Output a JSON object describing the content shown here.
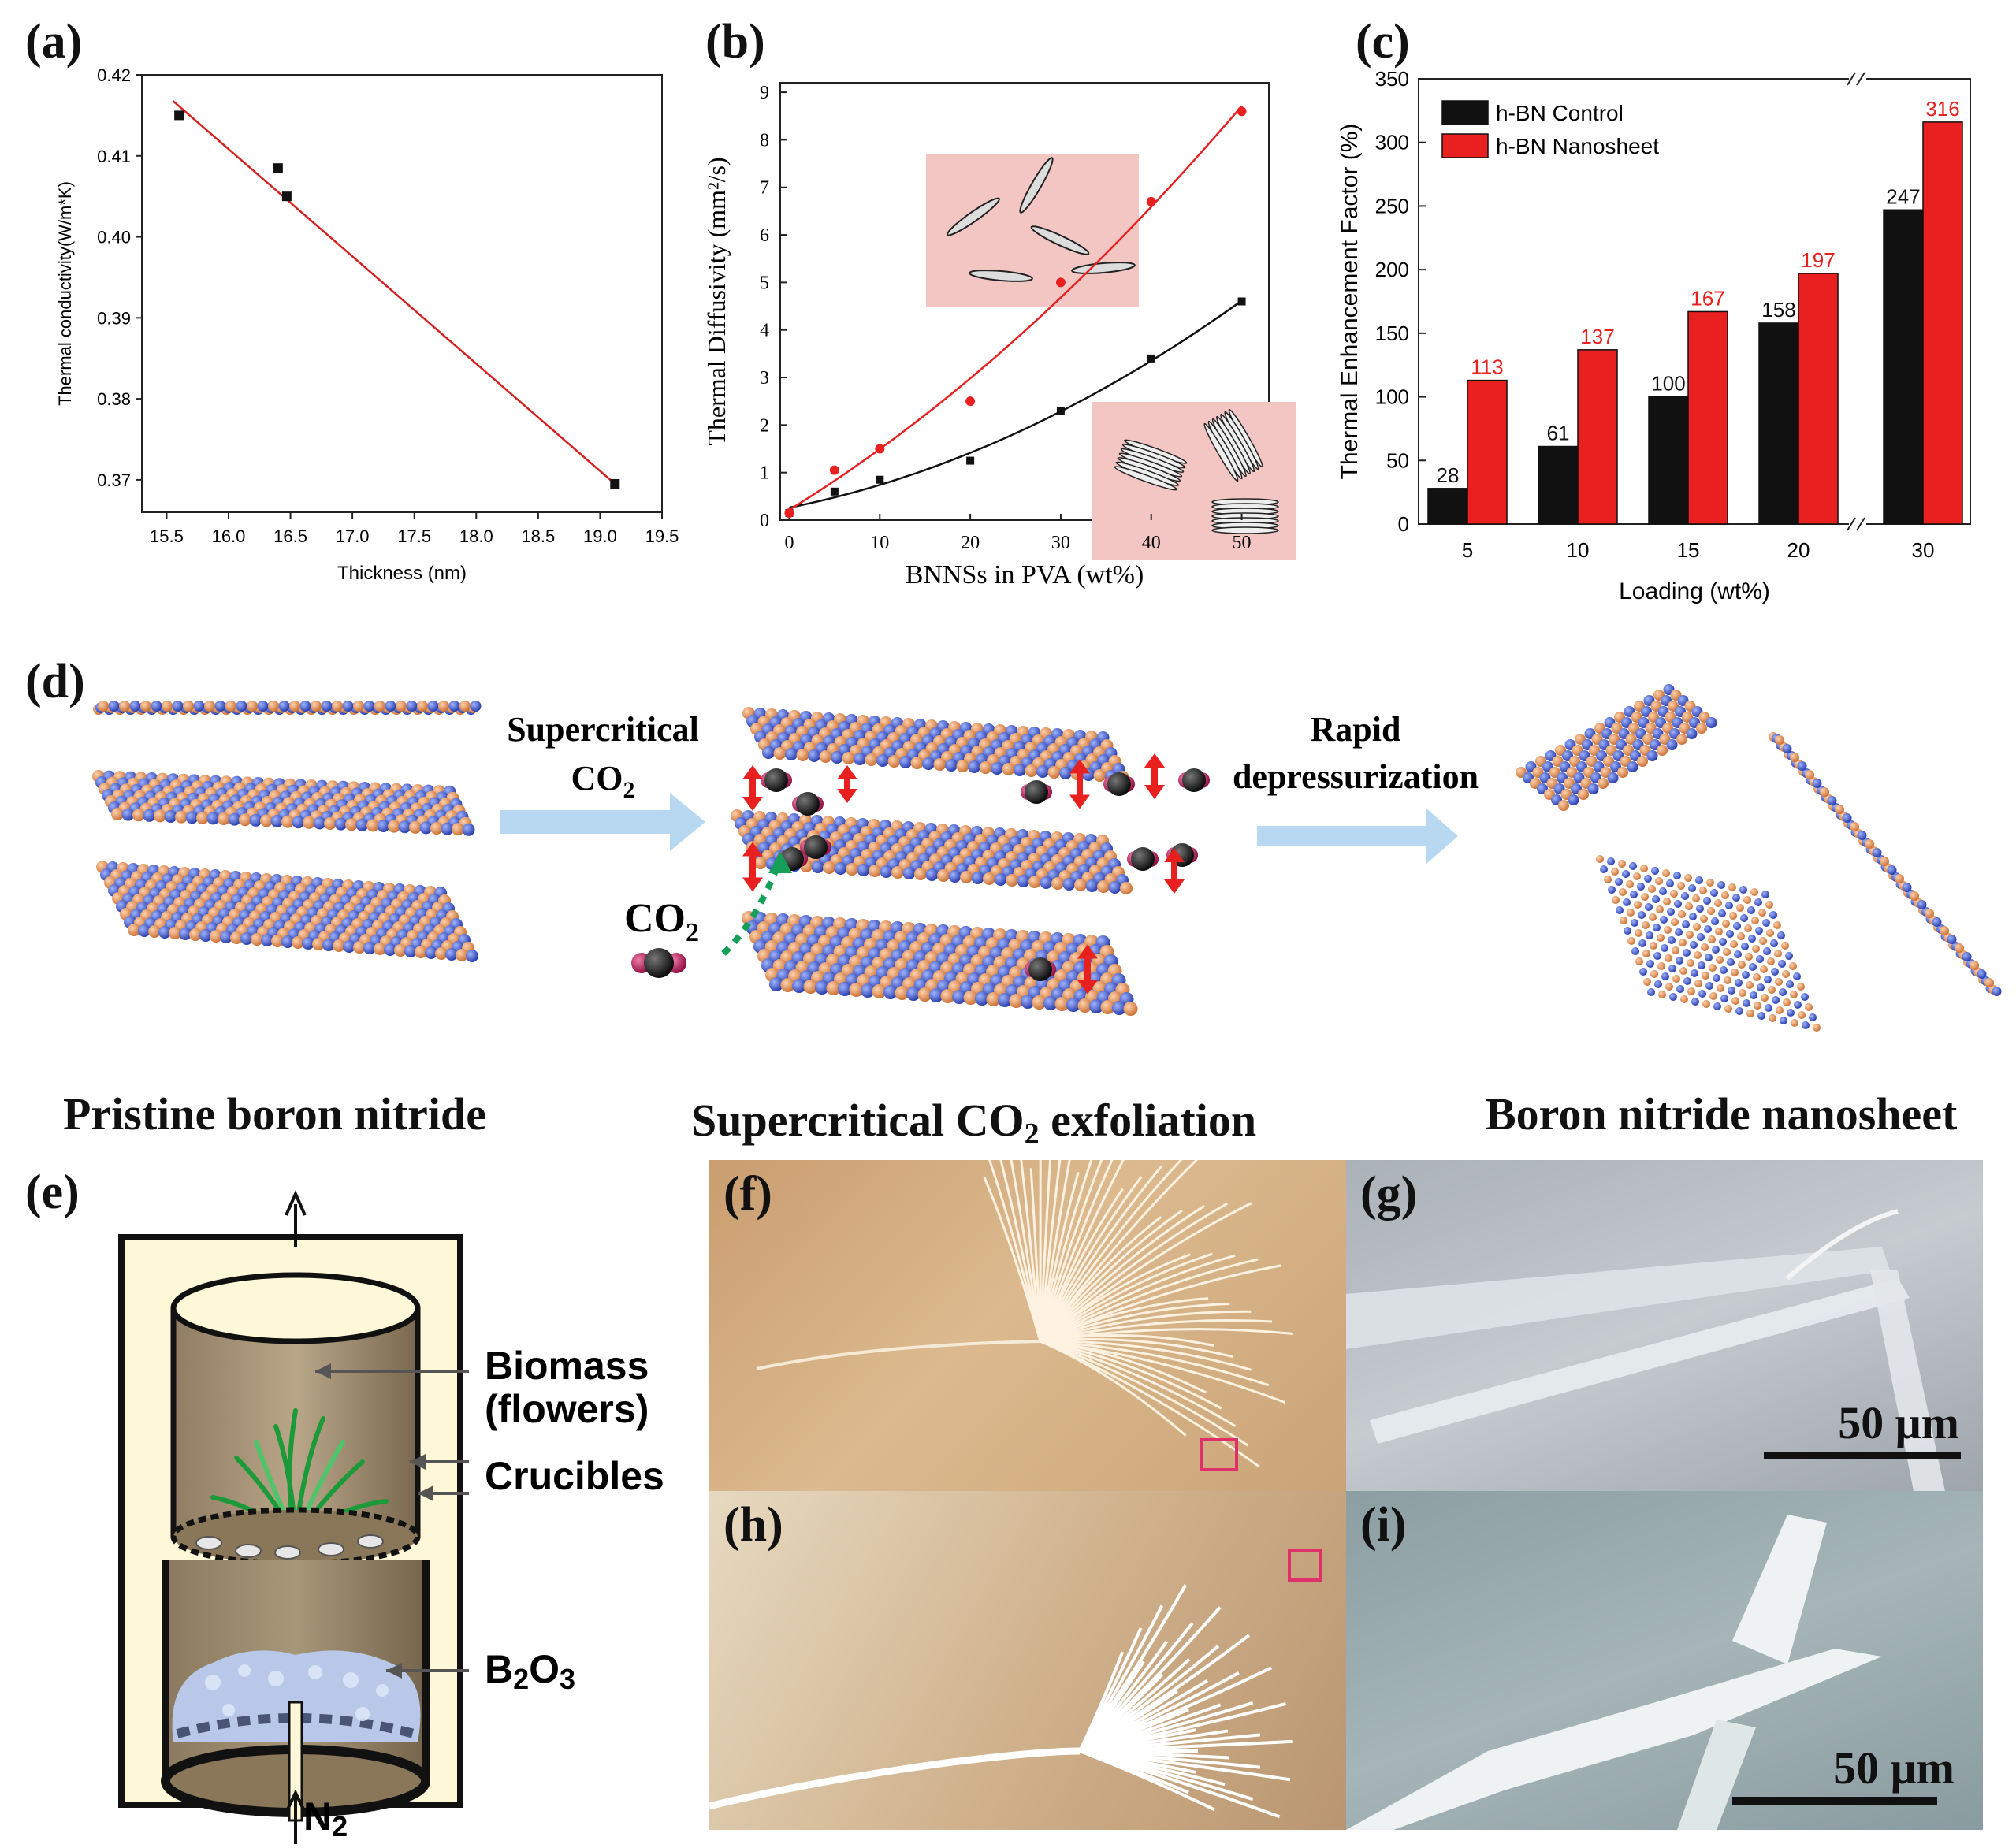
{
  "panels": {
    "a": {
      "label": "(a)"
    },
    "b": {
      "label": "(b)"
    },
    "c": {
      "label": "(c)"
    },
    "d": {
      "label": "(d)"
    },
    "e": {
      "label": "(e)"
    },
    "f": {
      "label": "(f)"
    },
    "g": {
      "label": "(g)"
    },
    "h": {
      "label": "(h)"
    },
    "i": {
      "label": "(i)"
    }
  },
  "chart_data": [
    {
      "id": "a",
      "type": "scatter",
      "xlabel": "Thickness (nm)",
      "ylabel": "Thermal conductivity(W/m*K)",
      "xlim": [
        15.3,
        19.5
      ],
      "ylim": [
        0.366,
        0.42
      ],
      "xticks": [
        "15.5",
        "16.0",
        "16.5",
        "17.0",
        "17.5",
        "18.0",
        "18.5",
        "19.0",
        "19.5"
      ],
      "yticks": [
        "0.37",
        "0.38",
        "0.39",
        "0.40",
        "0.41",
        "0.42"
      ],
      "points": [
        [
          15.6,
          0.415
        ],
        [
          16.4,
          0.4085
        ],
        [
          16.47,
          0.405
        ],
        [
          19.12,
          0.3695
        ]
      ],
      "fit_line": [
        [
          15.55,
          0.4168
        ],
        [
          19.12,
          0.3695
        ]
      ],
      "colors": {
        "points": "#111111",
        "fit": "#d62020"
      }
    },
    {
      "id": "b",
      "type": "scatter",
      "xlabel": "BNNSs in PVA (wt%)",
      "ylabel": "Thermal Diffusivity (mm²/s)",
      "xlim": [
        -1,
        53
      ],
      "ylim": [
        0,
        9.2
      ],
      "xticks": [
        "0",
        "10",
        "20",
        "30",
        "40",
        "50"
      ],
      "yticks": [
        "0",
        "1",
        "2",
        "3",
        "4",
        "5",
        "6",
        "7",
        "8",
        "9"
      ],
      "series": [
        {
          "name": "black",
          "color": "#111111",
          "x": [
            0,
            5,
            10,
            20,
            30,
            40,
            50
          ],
          "values": [
            0.15,
            0.6,
            0.85,
            1.25,
            2.3,
            3.4,
            4.6
          ]
        },
        {
          "name": "red",
          "color": "#e8201f",
          "x": [
            0,
            5,
            10,
            20,
            30,
            40,
            50
          ],
          "values": [
            0.15,
            1.05,
            1.5,
            2.5,
            5.0,
            6.7,
            8.6
          ]
        }
      ]
    },
    {
      "id": "c",
      "type": "bar",
      "xlabel": "Loading (wt%)",
      "ylabel": "Thermal Enhancement Factor (%)",
      "ylim": [
        0,
        350
      ],
      "yticks": [
        "0",
        "50",
        "100",
        "150",
        "200",
        "250",
        "300",
        "350"
      ],
      "categories": [
        "5",
        "10",
        "15",
        "20",
        "30"
      ],
      "series": [
        {
          "name": "h-BN Control",
          "color": "#111111",
          "values": [
            28,
            61,
            100,
            158,
            247
          ]
        },
        {
          "name": "h-BN Nanosheet",
          "color": "#e8201f",
          "values": [
            113,
            137,
            167,
            197,
            316
          ]
        }
      ],
      "value_labels": {
        "control": [
          "28",
          "61",
          "100",
          "158",
          "247"
        ],
        "nanosheet": [
          "113",
          "137",
          "167",
          "197",
          "316"
        ]
      }
    }
  ],
  "diagram_d": {
    "arrow1_line1": "Supercritical",
    "arrow1_line2": "CO",
    "arrow1_sub": "2",
    "arrow2_line1": "Rapid",
    "arrow2_line2": "depressurization",
    "co2_label": "CO",
    "co2_sub": "2",
    "caption1": "Pristine boron nitride",
    "caption2_a": "Supercritical CO",
    "caption2_sub": "2",
    "caption2_b": " exfoliation",
    "caption3": "Boron nitride nanosheet",
    "colors": {
      "boron": "#e28a4e",
      "nitrogen": "#3e5bd6",
      "arrow": "#b8d7f0",
      "co2": "#c2185b"
    }
  },
  "diagram_e": {
    "biomass_l1": "Biomass",
    "biomass_l2": "(flowers)",
    "crucibles": "Crucibles",
    "b2o3": "B",
    "b2o3_sub1": "2",
    "b2o3_o": "O",
    "b2o3_sub2": "3",
    "n2": "N",
    "n2_sub": "2"
  },
  "images": {
    "g_scale": "50 μm",
    "i_scale": "50 μm"
  }
}
